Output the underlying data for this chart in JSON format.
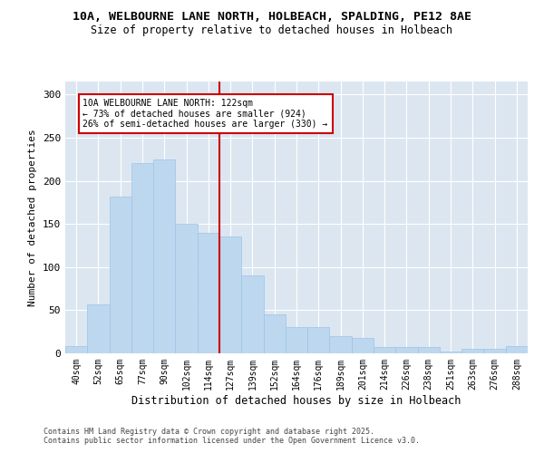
{
  "title_line1": "10A, WELBOURNE LANE NORTH, HOLBEACH, SPALDING, PE12 8AE",
  "title_line2": "Size of property relative to detached houses in Holbeach",
  "xlabel": "Distribution of detached houses by size in Holbeach",
  "ylabel": "Number of detached properties",
  "categories": [
    "40sqm",
    "52sqm",
    "65sqm",
    "77sqm",
    "90sqm",
    "102sqm",
    "114sqm",
    "127sqm",
    "139sqm",
    "152sqm",
    "164sqm",
    "176sqm",
    "189sqm",
    "201sqm",
    "214sqm",
    "226sqm",
    "238sqm",
    "251sqm",
    "263sqm",
    "276sqm",
    "288sqm"
  ],
  "values": [
    8,
    57,
    182,
    220,
    225,
    150,
    140,
    135,
    90,
    45,
    30,
    30,
    20,
    18,
    7,
    7,
    7,
    2,
    5,
    5,
    8
  ],
  "bar_color": "#BDD7EE",
  "bar_edge_color": "#9DC3E6",
  "vline_color": "#CC0000",
  "annotation_text": "10A WELBOURNE LANE NORTH: 122sqm\n← 73% of detached houses are smaller (924)\n26% of semi-detached houses are larger (330) →",
  "annotation_box_color": "#CC0000",
  "background_color": "#DCE6F1",
  "ylim": [
    0,
    315
  ],
  "yticks": [
    0,
    50,
    100,
    150,
    200,
    250,
    300
  ],
  "footer_line1": "Contains HM Land Registry data © Crown copyright and database right 2025.",
  "footer_line2": "Contains public sector information licensed under the Open Government Licence v3.0."
}
